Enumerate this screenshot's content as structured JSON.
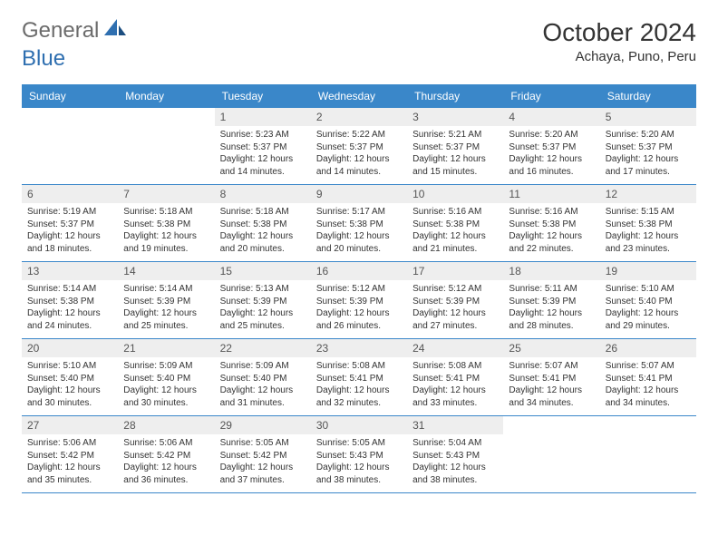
{
  "logo": {
    "word1": "General",
    "word2": "Blue"
  },
  "header": {
    "title": "October 2024",
    "location": "Achaya, Puno, Peru"
  },
  "colors": {
    "header_bg": "#3a87c9",
    "header_text": "#ffffff",
    "daynum_bg": "#eeeeee",
    "week_border": "#3a87c9",
    "body_text": "#333333",
    "logo_gray": "#6b6b6b",
    "logo_blue": "#2f6fb0"
  },
  "daynames": [
    "Sunday",
    "Monday",
    "Tuesday",
    "Wednesday",
    "Thursday",
    "Friday",
    "Saturday"
  ],
  "weeks": [
    [
      null,
      null,
      {
        "n": "1",
        "sr": "Sunrise: 5:23 AM",
        "ss": "Sunset: 5:37 PM",
        "d1": "Daylight: 12 hours",
        "d2": "and 14 minutes."
      },
      {
        "n": "2",
        "sr": "Sunrise: 5:22 AM",
        "ss": "Sunset: 5:37 PM",
        "d1": "Daylight: 12 hours",
        "d2": "and 14 minutes."
      },
      {
        "n": "3",
        "sr": "Sunrise: 5:21 AM",
        "ss": "Sunset: 5:37 PM",
        "d1": "Daylight: 12 hours",
        "d2": "and 15 minutes."
      },
      {
        "n": "4",
        "sr": "Sunrise: 5:20 AM",
        "ss": "Sunset: 5:37 PM",
        "d1": "Daylight: 12 hours",
        "d2": "and 16 minutes."
      },
      {
        "n": "5",
        "sr": "Sunrise: 5:20 AM",
        "ss": "Sunset: 5:37 PM",
        "d1": "Daylight: 12 hours",
        "d2": "and 17 minutes."
      }
    ],
    [
      {
        "n": "6",
        "sr": "Sunrise: 5:19 AM",
        "ss": "Sunset: 5:37 PM",
        "d1": "Daylight: 12 hours",
        "d2": "and 18 minutes."
      },
      {
        "n": "7",
        "sr": "Sunrise: 5:18 AM",
        "ss": "Sunset: 5:38 PM",
        "d1": "Daylight: 12 hours",
        "d2": "and 19 minutes."
      },
      {
        "n": "8",
        "sr": "Sunrise: 5:18 AM",
        "ss": "Sunset: 5:38 PM",
        "d1": "Daylight: 12 hours",
        "d2": "and 20 minutes."
      },
      {
        "n": "9",
        "sr": "Sunrise: 5:17 AM",
        "ss": "Sunset: 5:38 PM",
        "d1": "Daylight: 12 hours",
        "d2": "and 20 minutes."
      },
      {
        "n": "10",
        "sr": "Sunrise: 5:16 AM",
        "ss": "Sunset: 5:38 PM",
        "d1": "Daylight: 12 hours",
        "d2": "and 21 minutes."
      },
      {
        "n": "11",
        "sr": "Sunrise: 5:16 AM",
        "ss": "Sunset: 5:38 PM",
        "d1": "Daylight: 12 hours",
        "d2": "and 22 minutes."
      },
      {
        "n": "12",
        "sr": "Sunrise: 5:15 AM",
        "ss": "Sunset: 5:38 PM",
        "d1": "Daylight: 12 hours",
        "d2": "and 23 minutes."
      }
    ],
    [
      {
        "n": "13",
        "sr": "Sunrise: 5:14 AM",
        "ss": "Sunset: 5:38 PM",
        "d1": "Daylight: 12 hours",
        "d2": "and 24 minutes."
      },
      {
        "n": "14",
        "sr": "Sunrise: 5:14 AM",
        "ss": "Sunset: 5:39 PM",
        "d1": "Daylight: 12 hours",
        "d2": "and 25 minutes."
      },
      {
        "n": "15",
        "sr": "Sunrise: 5:13 AM",
        "ss": "Sunset: 5:39 PM",
        "d1": "Daylight: 12 hours",
        "d2": "and 25 minutes."
      },
      {
        "n": "16",
        "sr": "Sunrise: 5:12 AM",
        "ss": "Sunset: 5:39 PM",
        "d1": "Daylight: 12 hours",
        "d2": "and 26 minutes."
      },
      {
        "n": "17",
        "sr": "Sunrise: 5:12 AM",
        "ss": "Sunset: 5:39 PM",
        "d1": "Daylight: 12 hours",
        "d2": "and 27 minutes."
      },
      {
        "n": "18",
        "sr": "Sunrise: 5:11 AM",
        "ss": "Sunset: 5:39 PM",
        "d1": "Daylight: 12 hours",
        "d2": "and 28 minutes."
      },
      {
        "n": "19",
        "sr": "Sunrise: 5:10 AM",
        "ss": "Sunset: 5:40 PM",
        "d1": "Daylight: 12 hours",
        "d2": "and 29 minutes."
      }
    ],
    [
      {
        "n": "20",
        "sr": "Sunrise: 5:10 AM",
        "ss": "Sunset: 5:40 PM",
        "d1": "Daylight: 12 hours",
        "d2": "and 30 minutes."
      },
      {
        "n": "21",
        "sr": "Sunrise: 5:09 AM",
        "ss": "Sunset: 5:40 PM",
        "d1": "Daylight: 12 hours",
        "d2": "and 30 minutes."
      },
      {
        "n": "22",
        "sr": "Sunrise: 5:09 AM",
        "ss": "Sunset: 5:40 PM",
        "d1": "Daylight: 12 hours",
        "d2": "and 31 minutes."
      },
      {
        "n": "23",
        "sr": "Sunrise: 5:08 AM",
        "ss": "Sunset: 5:41 PM",
        "d1": "Daylight: 12 hours",
        "d2": "and 32 minutes."
      },
      {
        "n": "24",
        "sr": "Sunrise: 5:08 AM",
        "ss": "Sunset: 5:41 PM",
        "d1": "Daylight: 12 hours",
        "d2": "and 33 minutes."
      },
      {
        "n": "25",
        "sr": "Sunrise: 5:07 AM",
        "ss": "Sunset: 5:41 PM",
        "d1": "Daylight: 12 hours",
        "d2": "and 34 minutes."
      },
      {
        "n": "26",
        "sr": "Sunrise: 5:07 AM",
        "ss": "Sunset: 5:41 PM",
        "d1": "Daylight: 12 hours",
        "d2": "and 34 minutes."
      }
    ],
    [
      {
        "n": "27",
        "sr": "Sunrise: 5:06 AM",
        "ss": "Sunset: 5:42 PM",
        "d1": "Daylight: 12 hours",
        "d2": "and 35 minutes."
      },
      {
        "n": "28",
        "sr": "Sunrise: 5:06 AM",
        "ss": "Sunset: 5:42 PM",
        "d1": "Daylight: 12 hours",
        "d2": "and 36 minutes."
      },
      {
        "n": "29",
        "sr": "Sunrise: 5:05 AM",
        "ss": "Sunset: 5:42 PM",
        "d1": "Daylight: 12 hours",
        "d2": "and 37 minutes."
      },
      {
        "n": "30",
        "sr": "Sunrise: 5:05 AM",
        "ss": "Sunset: 5:43 PM",
        "d1": "Daylight: 12 hours",
        "d2": "and 38 minutes."
      },
      {
        "n": "31",
        "sr": "Sunrise: 5:04 AM",
        "ss": "Sunset: 5:43 PM",
        "d1": "Daylight: 12 hours",
        "d2": "and 38 minutes."
      },
      null,
      null
    ]
  ]
}
